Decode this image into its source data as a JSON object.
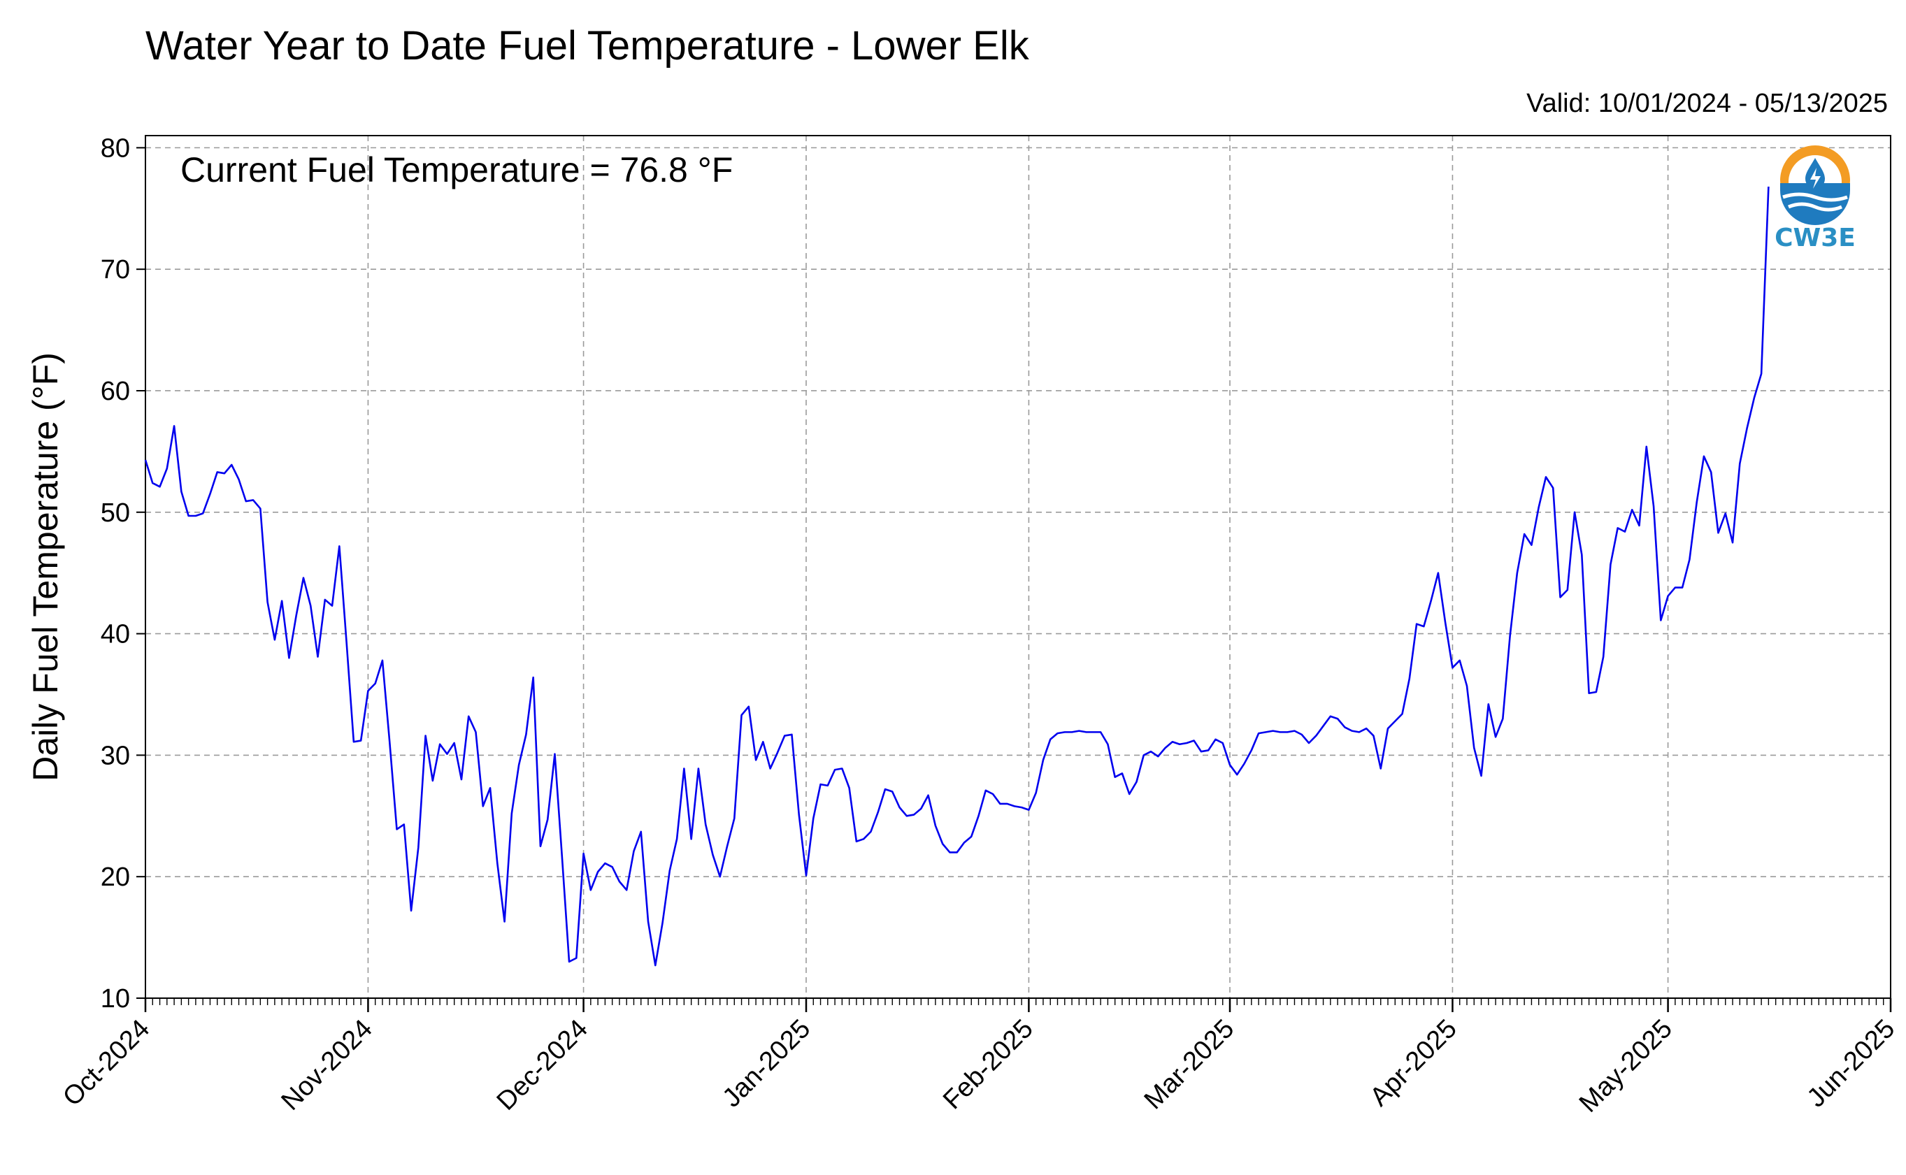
{
  "chart_data": {
    "type": "line",
    "title": "Water Year to Date Fuel Temperature - Lower Elk",
    "valid_label": "Valid: 10/01/2024 - 05/13/2025",
    "annotation": "Current Fuel Temperature = 76.8 °F",
    "ylabel": "Daily Fuel Temperature (°F)",
    "xlabel": "",
    "x_start": "2024-10-01",
    "x_range": [
      "2024-10-01",
      "2025-06-01"
    ],
    "ylim": [
      10,
      81
    ],
    "yticks": [
      10,
      20,
      30,
      40,
      50,
      60,
      70,
      80
    ],
    "xticks": [
      {
        "date": "2024-10-01",
        "label": "Oct-2024"
      },
      {
        "date": "2024-11-01",
        "label": "Nov-2024"
      },
      {
        "date": "2024-12-01",
        "label": "Dec-2024"
      },
      {
        "date": "2025-01-01",
        "label": "Jan-2025"
      },
      {
        "date": "2025-02-01",
        "label": "Feb-2025"
      },
      {
        "date": "2025-03-01",
        "label": "Mar-2025"
      },
      {
        "date": "2025-04-01",
        "label": "Apr-2025"
      },
      {
        "date": "2025-05-01",
        "label": "May-2025"
      },
      {
        "date": "2025-06-01",
        "label": "Jun-2025"
      }
    ],
    "grid": true,
    "line_color": "#0000ee",
    "logo_text": "CW3E",
    "series": [
      {
        "values": [
          54.3,
          52.4,
          52.1,
          53.6,
          57.1,
          51.7,
          49.7,
          49.7,
          49.9,
          51.5,
          53.3,
          53.2,
          53.9,
          52.7,
          50.9,
          51.0,
          50.3,
          42.6,
          39.5,
          42.7,
          38.0,
          41.5,
          44.6,
          42.3,
          38.1,
          42.8,
          42.3,
          47.2,
          39.3,
          31.1,
          31.2,
          35.3,
          35.9,
          37.8,
          31.1,
          23.9,
          24.3,
          17.2,
          22.4,
          31.6,
          27.9,
          30.9,
          30.1,
          31.0,
          28.0,
          33.2,
          31.9,
          25.8,
          27.3,
          21.1,
          16.3,
          25.2,
          29.2,
          31.7,
          36.4,
          22.5,
          24.7,
          30.1,
          21.7,
          13.0,
          13.3,
          21.9,
          18.9,
          20.4,
          21.1,
          20.8,
          19.6,
          18.9,
          22.1,
          23.7,
          16.3,
          12.7,
          16.2,
          20.5,
          23.1,
          28.9,
          23.1,
          28.9,
          24.3,
          21.8,
          20.0,
          22.5,
          24.8,
          33.3,
          34.0,
          29.6,
          31.1,
          28.9,
          30.2,
          31.6,
          31.7,
          25.1,
          20.1,
          24.8,
          27.6,
          27.5,
          28.8,
          28.9,
          27.3,
          22.9,
          23.1,
          23.7,
          25.3,
          27.2,
          27.0,
          25.7,
          25.0,
          25.1,
          25.6,
          26.7,
          24.2,
          22.7,
          22.0,
          22.0,
          22.8,
          23.3,
          25.0,
          27.1,
          26.8,
          26.0,
          26.0,
          25.8,
          25.7,
          25.5,
          26.9,
          29.6,
          31.3,
          31.8,
          31.9,
          31.9,
          32.0,
          31.9,
          31.9,
          31.9,
          30.9,
          28.2,
          28.5,
          26.8,
          27.8,
          30.0,
          30.3,
          29.9,
          30.6,
          31.1,
          30.9,
          31.0,
          31.2,
          30.3,
          30.4,
          31.3,
          31.0,
          29.2,
          28.4,
          29.3,
          30.4,
          31.8,
          31.9,
          32.0,
          31.9,
          31.9,
          32.0,
          31.7,
          31.0,
          31.6,
          32.4,
          33.2,
          33.0,
          32.3,
          32.0,
          31.9,
          32.2,
          31.6,
          28.9,
          32.2,
          32.8,
          33.4,
          36.3,
          40.8,
          40.6,
          42.7,
          45.0,
          40.9,
          37.2,
          37.8,
          35.7,
          30.6,
          28.3,
          34.2,
          31.5,
          33.0,
          39.8,
          45.0,
          48.2,
          47.3,
          50.4,
          52.9,
          52.0,
          43.0,
          43.6,
          50.0,
          46.5,
          35.1,
          35.2,
          38.1,
          45.7,
          48.7,
          48.4,
          50.2,
          48.9,
          55.4,
          50.5,
          41.1,
          43.1,
          43.8,
          43.8,
          46.1,
          50.8,
          54.6,
          53.3,
          48.3,
          49.9,
          47.5,
          54.0,
          56.9,
          59.4,
          61.4,
          76.8
        ]
      }
    ]
  }
}
